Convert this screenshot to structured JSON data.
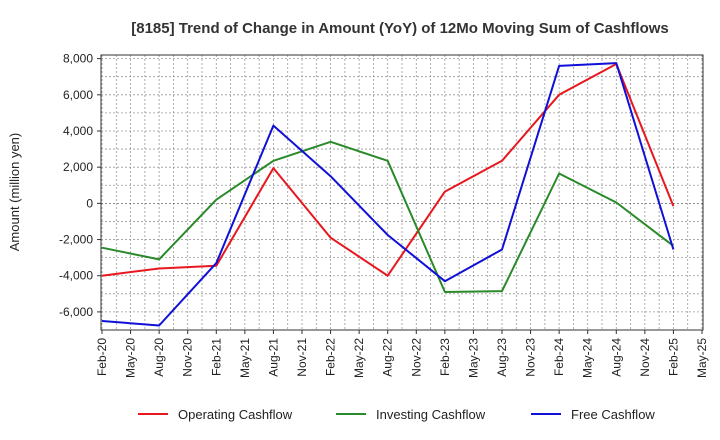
{
  "chart_data": {
    "type": "line",
    "title": "[8185]  Trend of Change in Amount (YoY) of 12Mo Moving Sum of Cashflows",
    "xlabel": "",
    "ylabel": "Amount (million yen)",
    "ylim": [
      -7000,
      8200
    ],
    "yticks": [
      8000,
      6000,
      4000,
      2000,
      0,
      -2000,
      -4000,
      -6000
    ],
    "ytick_labels": [
      "8,000",
      "6,000",
      "4,000",
      "2,000",
      "0",
      "-2,000",
      "-4,000",
      "-6,000"
    ],
    "x_labels": [
      "Feb-20",
      "May-20",
      "Aug-20",
      "Nov-20",
      "Feb-21",
      "May-21",
      "Aug-21",
      "Nov-21",
      "Feb-22",
      "May-22",
      "Aug-22",
      "Nov-22",
      "Feb-23",
      "May-23",
      "Aug-23",
      "Nov-23",
      "Feb-24",
      "May-24",
      "Aug-24",
      "Nov-24",
      "Feb-25",
      "May-25"
    ],
    "grid": true,
    "legend_position": "bottom",
    "series": [
      {
        "name": "Operating Cashflow",
        "color": "#e8171d",
        "points": [
          [
            "Feb-20",
            -4000
          ],
          [
            "Aug-20",
            -3600
          ],
          [
            "Feb-21",
            -3450
          ],
          [
            "Aug-21",
            1950
          ],
          [
            "Feb-22",
            -1900
          ],
          [
            "Aug-22",
            -4000
          ],
          [
            "Feb-23",
            650
          ],
          [
            "Aug-23",
            2350
          ],
          [
            "Feb-24",
            6000
          ],
          [
            "Aug-24",
            7700
          ],
          [
            "Feb-25",
            -150
          ]
        ]
      },
      {
        "name": "Investing Cashflow",
        "color": "#2a8a2a",
        "points": [
          [
            "Feb-20",
            -2450
          ],
          [
            "Aug-20",
            -3100
          ],
          [
            "Feb-21",
            200
          ],
          [
            "Aug-21",
            2350
          ],
          [
            "Feb-22",
            3400
          ],
          [
            "Aug-22",
            2350
          ],
          [
            "Feb-23",
            -4900
          ],
          [
            "Aug-23",
            -4850
          ],
          [
            "Feb-24",
            1650
          ],
          [
            "Aug-24",
            50
          ],
          [
            "Feb-25",
            -2350
          ]
        ]
      },
      {
        "name": "Free Cashflow",
        "color": "#1010d8",
        "points": [
          [
            "Feb-20",
            -6500
          ],
          [
            "Aug-20",
            -6750
          ],
          [
            "Feb-21",
            -3300
          ],
          [
            "Aug-21",
            4300
          ],
          [
            "Feb-22",
            1500
          ],
          [
            "Aug-22",
            -1750
          ],
          [
            "Feb-23",
            -4300
          ],
          [
            "Aug-23",
            -2550
          ],
          [
            "Feb-24",
            7600
          ],
          [
            "Aug-24",
            7750
          ],
          [
            "Feb-25",
            -2550
          ]
        ]
      }
    ]
  }
}
